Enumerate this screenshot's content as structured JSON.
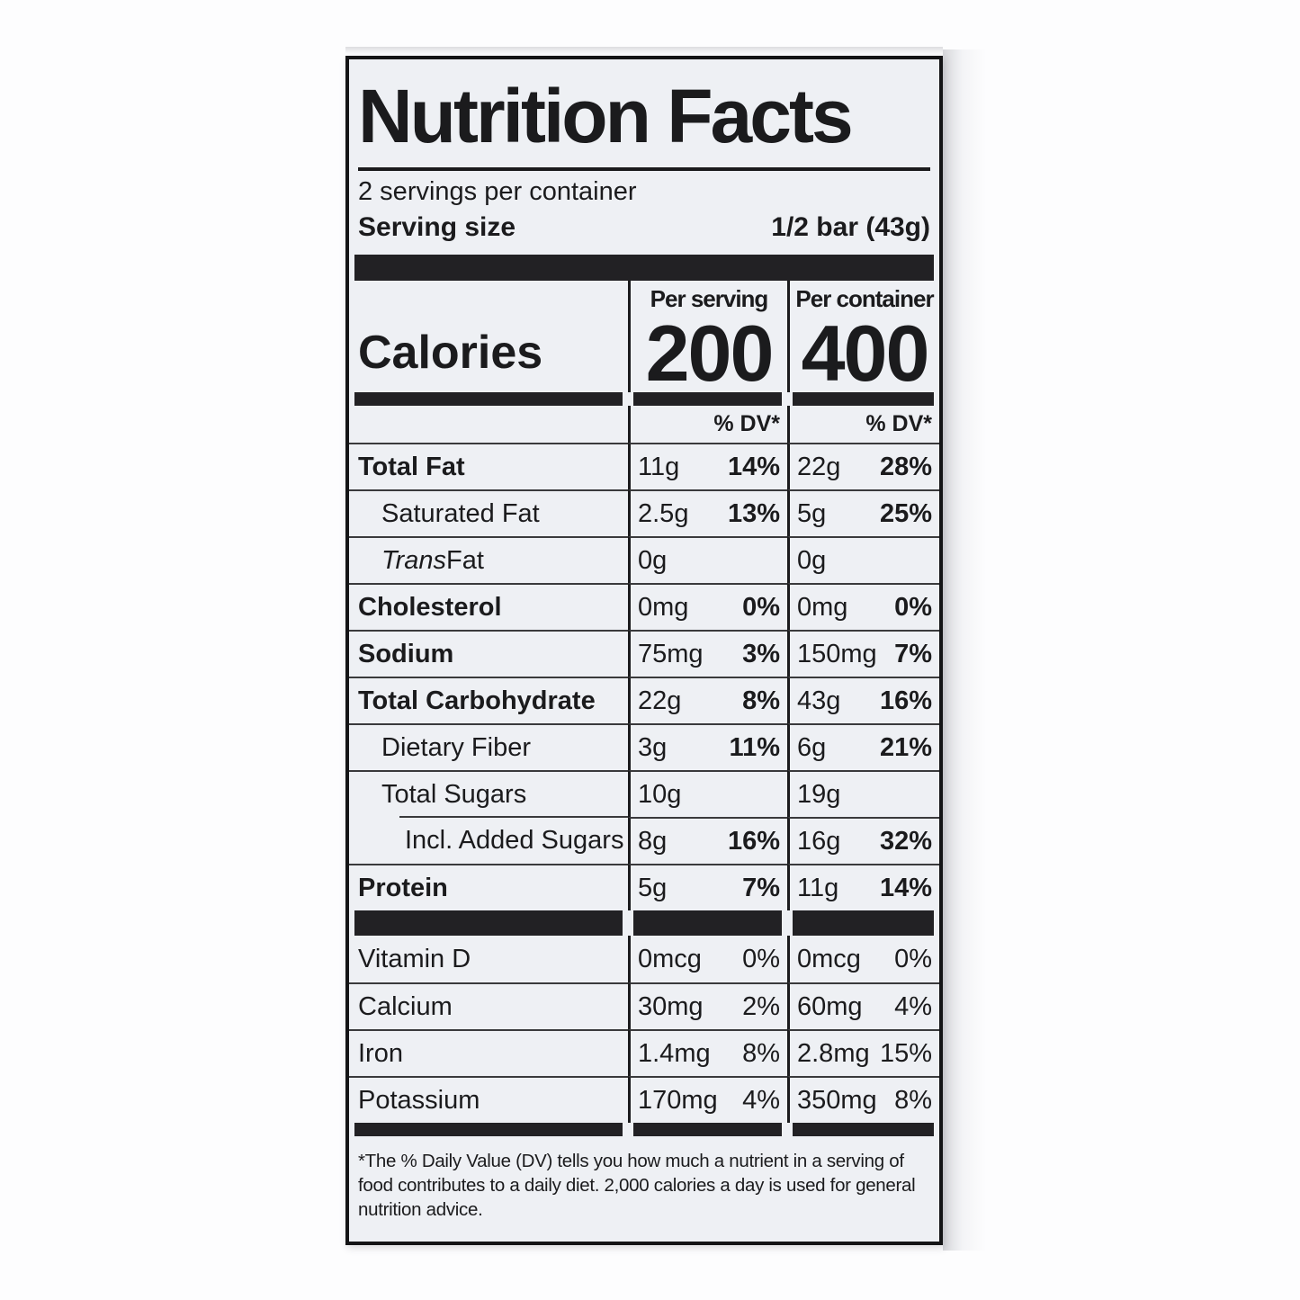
{
  "colors": {
    "ink": "#1b1b1d",
    "label_background": "#eef0f4",
    "separator_bar": "#222124"
  },
  "panel": {
    "title": "Nutrition Facts",
    "servings_per_container": "2 servings per container",
    "serving_size_label": "Serving size",
    "serving_size_value": "1/2 bar (43g)",
    "calories_label": "Calories",
    "columns": {
      "per_serving": "Per serving",
      "per_container": "Per container"
    },
    "calories": {
      "per_serving": "200",
      "per_container": "400"
    },
    "dv_header": "% DV*",
    "rows": [
      {
        "name": "Total Fat",
        "serving_amount": "11g",
        "serving_dv": "14%",
        "container_amount": "22g",
        "container_dv": "28%"
      },
      {
        "name": "Saturated Fat",
        "serving_amount": "2.5g",
        "serving_dv": "13%",
        "container_amount": "5g",
        "container_dv": "25%"
      },
      {
        "name_italic": "Trans",
        "name": " Fat",
        "serving_amount": "0g",
        "serving_dv": "",
        "container_amount": "0g",
        "container_dv": ""
      },
      {
        "name": "Cholesterol",
        "serving_amount": "0mg",
        "serving_dv": "0%",
        "container_amount": "0mg",
        "container_dv": "0%"
      },
      {
        "name": "Sodium",
        "serving_amount": "75mg",
        "serving_dv": "3%",
        "container_amount": "150mg",
        "container_dv": "7%"
      },
      {
        "name": "Total Carbohydrate",
        "serving_amount": "22g",
        "serving_dv": "8%",
        "container_amount": "43g",
        "container_dv": "16%"
      },
      {
        "name": "Dietary Fiber",
        "serving_amount": "3g",
        "serving_dv": "11%",
        "container_amount": "6g",
        "container_dv": "21%"
      },
      {
        "name": "Total Sugars",
        "serving_amount": "10g",
        "serving_dv": "",
        "container_amount": "19g",
        "container_dv": ""
      },
      {
        "name": "Incl. Added Sugars",
        "serving_amount": "8g",
        "serving_dv": "16%",
        "container_amount": "16g",
        "container_dv": "32%"
      },
      {
        "name": "Protein",
        "serving_amount": "5g",
        "serving_dv": "7%",
        "container_amount": "11g",
        "container_dv": "14%"
      }
    ],
    "micronutrients": [
      {
        "name": "Vitamin D",
        "serving_amount": "0mcg",
        "serving_dv": "0%",
        "container_amount": "0mcg",
        "container_dv": "0%"
      },
      {
        "name": "Calcium",
        "serving_amount": "30mg",
        "serving_dv": "2%",
        "container_amount": "60mg",
        "container_dv": "4%"
      },
      {
        "name": "Iron",
        "serving_amount": "1.4mg",
        "serving_dv": "8%",
        "container_amount": "2.8mg",
        "container_dv": "15%"
      },
      {
        "name": "Potassium",
        "serving_amount": "170mg",
        "serving_dv": "4%",
        "container_amount": "350mg",
        "container_dv": "8%"
      }
    ],
    "footnote": "*The % Daily Value (DV) tells you how much a nutrient in a serving of food contributes to a daily diet. 2,000 calories a day is used for general nutrition advice."
  }
}
